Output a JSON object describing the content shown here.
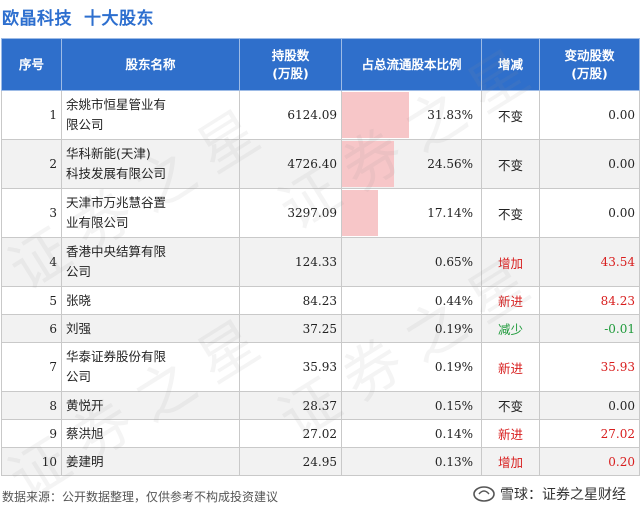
{
  "header": {
    "company": "欧晶科技",
    "subtitle": "十大股东"
  },
  "columns": {
    "rank": "序号",
    "name": "股东名称",
    "shares_l1": "持股数",
    "shares_l2": "(万股)",
    "ratio": "占总流通股本比例",
    "status": "增减",
    "change_l1": "变动股数",
    "change_l2": "(万股)"
  },
  "rows": [
    {
      "rank": "1",
      "name_l1": "余姚市恒星管业有",
      "name_l2": "限公司",
      "shares": "6124.09",
      "ratio": "31.83%",
      "ratio_value": 31.83,
      "status": "不变",
      "status_type": "same",
      "change": "0.00"
    },
    {
      "rank": "2",
      "name_l1": "华科新能(天津)",
      "name_l2": "科技发展有限公司",
      "shares": "4726.40",
      "ratio": "24.56%",
      "ratio_value": 24.56,
      "status": "不变",
      "status_type": "same",
      "change": "0.00"
    },
    {
      "rank": "3",
      "name_l1": "天津市万兆慧谷置",
      "name_l2": "业有限公司",
      "shares": "3297.09",
      "ratio": "17.14%",
      "ratio_value": 17.14,
      "status": "不变",
      "status_type": "same",
      "change": "0.00"
    },
    {
      "rank": "4",
      "name_l1": "香港中央结算有限",
      "name_l2": "公司",
      "shares": "124.33",
      "ratio": "0.65%",
      "ratio_value": 0.65,
      "status": "增加",
      "status_type": "up",
      "change": "43.54"
    },
    {
      "rank": "5",
      "name_l1": "张晓",
      "name_l2": "",
      "shares": "84.23",
      "ratio": "0.44%",
      "ratio_value": 0.44,
      "status": "新进",
      "status_type": "up",
      "change": "84.23"
    },
    {
      "rank": "6",
      "name_l1": "刘强",
      "name_l2": "",
      "shares": "37.25",
      "ratio": "0.19%",
      "ratio_value": 0.19,
      "status": "减少",
      "status_type": "down",
      "change": "-0.01"
    },
    {
      "rank": "7",
      "name_l1": "华泰证券股份有限",
      "name_l2": "公司",
      "shares": "35.93",
      "ratio": "0.19%",
      "ratio_value": 0.19,
      "status": "新进",
      "status_type": "up",
      "change": "35.93"
    },
    {
      "rank": "8",
      "name_l1": "黄悦开",
      "name_l2": "",
      "shares": "28.37",
      "ratio": "0.15%",
      "ratio_value": 0.15,
      "status": "不变",
      "status_type": "same",
      "change": "0.00"
    },
    {
      "rank": "9",
      "name_l1": "蔡洪旭",
      "name_l2": "",
      "shares": "27.02",
      "ratio": "0.14%",
      "ratio_value": 0.14,
      "status": "新进",
      "status_type": "up",
      "change": "27.02"
    },
    {
      "rank": "10",
      "name_l1": "姜建明",
      "name_l2": "",
      "shares": "24.95",
      "ratio": "0.13%",
      "ratio_value": 0.13,
      "status": "增加",
      "status_type": "up",
      "change": "0.20"
    }
  ],
  "footer": {
    "source": "数据来源：公开数据整理，仅供参考不构成投资建议",
    "brand": "雪球：证券之星财经"
  },
  "watermark": "证券之星",
  "colors": {
    "header_bg": "#2f6fcb",
    "title": "#2d6fcf",
    "bar": "#f7c6c8",
    "up": "#d81e1e",
    "down": "#1e9a3a"
  }
}
